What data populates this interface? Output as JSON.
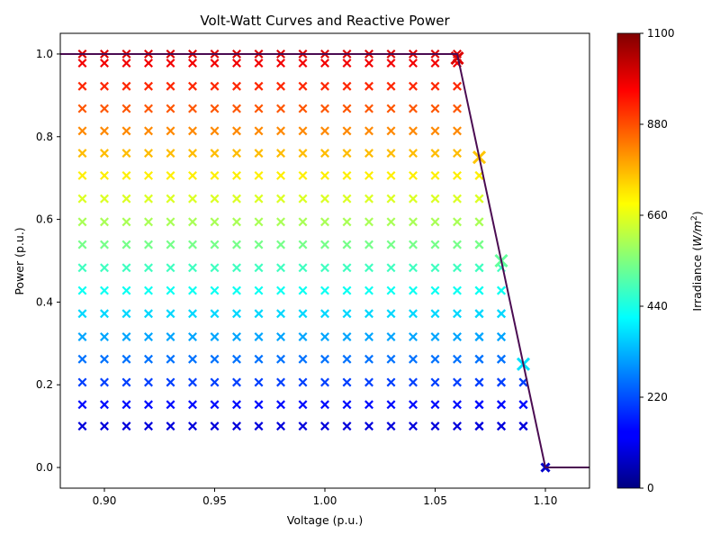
{
  "chart_data": {
    "type": "scatter",
    "title": "Volt-Watt Curves and Reactive Power",
    "xlabel": "Voltage (p.u.)",
    "ylabel": "Power (p.u.)",
    "xlim": [
      0.88,
      1.12
    ],
    "ylim": [
      -0.05,
      1.05
    ],
    "x_ticks": [
      0.9,
      0.95,
      1.0,
      1.05,
      1.1
    ],
    "x_tick_labels": [
      "0.90",
      "0.95",
      "1.00",
      "1.05",
      "1.10"
    ],
    "y_ticks": [
      0.0,
      0.2,
      0.4,
      0.6,
      0.8,
      1.0
    ],
    "y_tick_labels": [
      "0.0",
      "0.2",
      "0.4",
      "0.6",
      "0.8",
      "1.0"
    ],
    "grid": false,
    "marker": "x",
    "colormap": "jet",
    "colorbar": {
      "label_prefix": "Irradiance (",
      "label_unit_base": "W/m",
      "label_unit_exp": "2",
      "label_suffix": ")",
      "range": [
        0,
        1100
      ],
      "ticks": [
        0,
        220,
        440,
        660,
        880,
        1100
      ],
      "tick_labels": [
        "0",
        "220",
        "440",
        "660",
        "880",
        "1100"
      ]
    },
    "volt_watt_curve": {
      "color": "#4b0c52",
      "x": [
        0.88,
        1.06,
        1.1,
        1.12
      ],
      "y": [
        1.0,
        1.0,
        0.0,
        0.0
      ]
    },
    "voltages": [
      0.89,
      0.9,
      0.91,
      0.92,
      0.93,
      0.94,
      0.95,
      0.96,
      0.97,
      0.98,
      0.99,
      1.0,
      1.01,
      1.02,
      1.03,
      1.04,
      1.05,
      1.06,
      1.07,
      1.08,
      1.09,
      1.1
    ],
    "irradiance_levels": [
      100,
      150,
      205,
      260,
      315,
      370,
      425,
      480,
      540,
      595,
      650,
      705,
      760,
      815,
      870,
      920,
      975,
      1000
    ],
    "power_levels": [
      0.1,
      0.152,
      0.206,
      0.262,
      0.316,
      0.372,
      0.428,
      0.483,
      0.539,
      0.594,
      0.65,
      0.706,
      0.76,
      0.814,
      0.868,
      0.922,
      0.978,
      1.0
    ],
    "highlight_points": [
      {
        "x": 1.06,
        "y": 0.99,
        "irradiance": 1000
      },
      {
        "x": 1.07,
        "y": 0.75,
        "irradiance": 750
      },
      {
        "x": 1.08,
        "y": 0.5,
        "irradiance": 520
      },
      {
        "x": 1.09,
        "y": 0.25,
        "irradiance": 380
      },
      {
        "x": 1.1,
        "y": 0.0,
        "irradiance": 80
      }
    ]
  }
}
